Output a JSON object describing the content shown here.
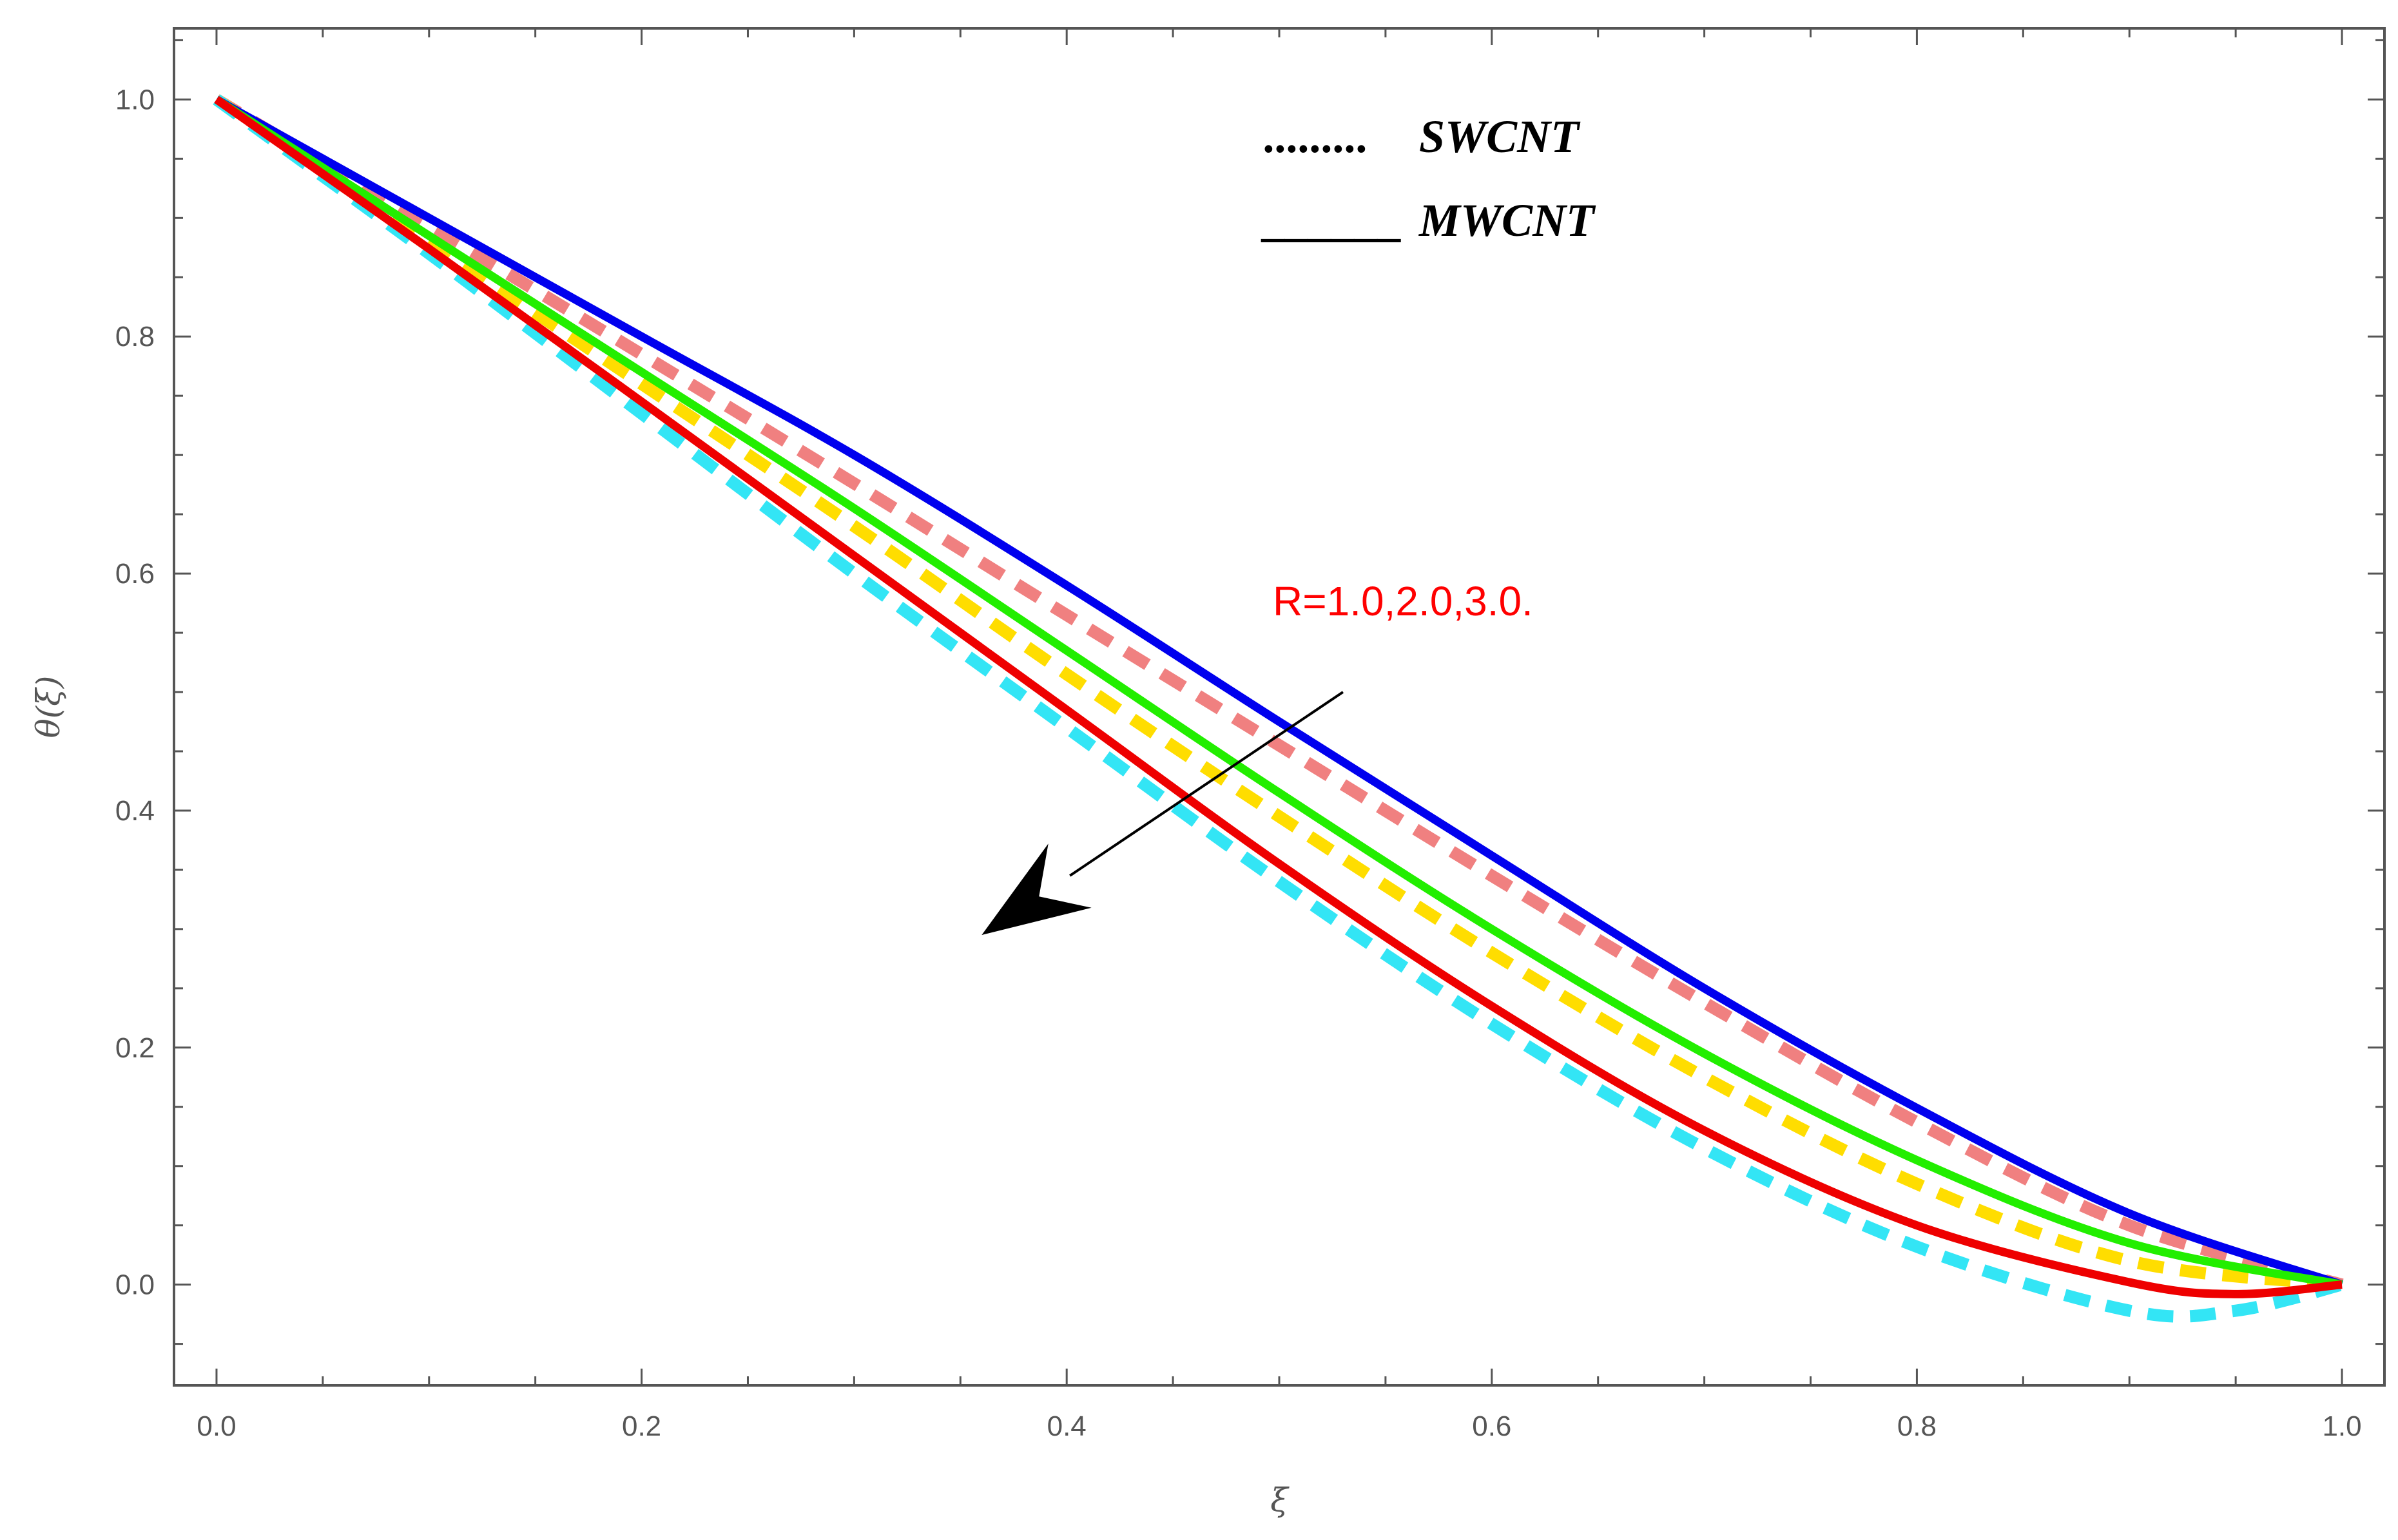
{
  "chart_data": {
    "type": "line",
    "title": "",
    "xlabel": "ξ",
    "ylabel": "θ(ξ)",
    "xlim": [
      -0.02,
      1.02
    ],
    "ylim": [
      -0.085,
      1.06
    ],
    "x_ticks": [
      0.0,
      0.2,
      0.4,
      0.6,
      0.8,
      1.0
    ],
    "x_tick_labels": [
      "0.0",
      "0.2",
      "0.4",
      "0.6",
      "0.8",
      "1.0"
    ],
    "y_ticks": [
      0.0,
      0.2,
      0.4,
      0.6,
      0.8,
      1.0
    ],
    "y_tick_labels": [
      "0.0",
      "0.2",
      "0.4",
      "0.6",
      "0.8",
      "1.0"
    ],
    "x_minor_step": 0.05,
    "y_minor_step": 0.05,
    "grid": false,
    "legend": {
      "position": "top-right",
      "entries": [
        {
          "marker": ".........",
          "label": "SWCNT",
          "style": "dotted"
        },
        {
          "marker": "______",
          "label": "MWCNT",
          "style": "solid"
        }
      ]
    },
    "annotation": {
      "text": "R=1.0,2.0,3.0.",
      "color": "#ff0000",
      "arrow_from": [
        0.53,
        0.5
      ],
      "arrow_to": [
        0.36,
        0.295
      ]
    },
    "series": [
      {
        "name": "SWCNT R=1.0",
        "color": "#f08080",
        "style": "dashed",
        "x": [
          0.0,
          0.1,
          0.2,
          0.3,
          0.4,
          0.5,
          0.6,
          0.7,
          0.8,
          0.9,
          1.0
        ],
        "y": [
          1.0,
          0.893,
          0.785,
          0.676,
          0.565,
          0.455,
          0.345,
          0.238,
          0.137,
          0.05,
          0.0
        ]
      },
      {
        "name": "SWCNT R=2.0",
        "color": "#ffdd00",
        "style": "dashed",
        "x": [
          0.0,
          0.1,
          0.2,
          0.3,
          0.4,
          0.5,
          0.6,
          0.7,
          0.8,
          0.9,
          1.0
        ],
        "y": [
          1.0,
          0.88,
          0.76,
          0.64,
          0.515,
          0.395,
          0.28,
          0.175,
          0.085,
          0.02,
          0.0
        ]
      },
      {
        "name": "SWCNT R=3.0",
        "color": "#33e5f5",
        "style": "dashed",
        "x": [
          0.0,
          0.1,
          0.2,
          0.3,
          0.4,
          0.5,
          0.6,
          0.7,
          0.8,
          0.9,
          0.95,
          1.0
        ],
        "y": [
          1.0,
          0.87,
          0.735,
          0.6,
          0.47,
          0.34,
          0.22,
          0.115,
          0.032,
          -0.022,
          -0.022,
          0.0
        ]
      },
      {
        "name": "MWCNT R=1.0",
        "color": "#0000ee",
        "style": "solid",
        "x": [
          0.0,
          0.1,
          0.2,
          0.3,
          0.4,
          0.5,
          0.6,
          0.7,
          0.8,
          0.9,
          1.0
        ],
        "y": [
          1.0,
          0.9,
          0.8,
          0.7,
          0.59,
          0.475,
          0.362,
          0.25,
          0.149,
          0.06,
          0.0
        ]
      },
      {
        "name": "MWCNT R=2.0",
        "color": "#22ee00",
        "style": "solid",
        "x": [
          0.0,
          0.1,
          0.2,
          0.3,
          0.4,
          0.5,
          0.6,
          0.7,
          0.8,
          0.9,
          1.0
        ],
        "y": [
          1.0,
          0.885,
          0.77,
          0.655,
          0.535,
          0.415,
          0.3,
          0.195,
          0.105,
          0.035,
          0.0
        ]
      },
      {
        "name": "MWCNT R=3.0",
        "color": "#ee0000",
        "style": "solid",
        "x": [
          0.0,
          0.1,
          0.2,
          0.3,
          0.4,
          0.5,
          0.6,
          0.7,
          0.8,
          0.9,
          0.95,
          1.0
        ],
        "y": [
          1.0,
          0.874,
          0.745,
          0.615,
          0.485,
          0.355,
          0.235,
          0.13,
          0.05,
          0.002,
          -0.008,
          0.0
        ]
      }
    ]
  }
}
